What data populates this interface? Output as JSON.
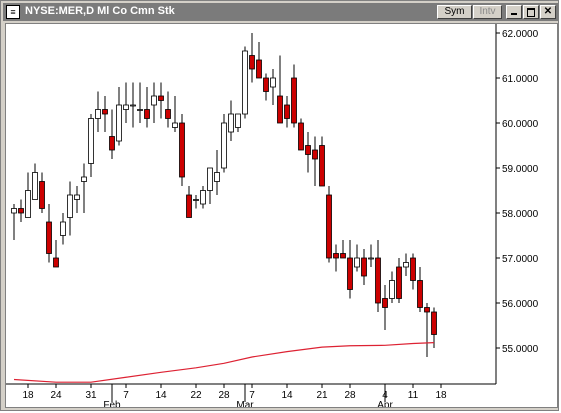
{
  "window": {
    "title": "NYSE:MER,D Ml Co Cmn Stk",
    "icon_label": "≡",
    "buttons": {
      "sym": "Sym",
      "intv": "Intv"
    }
  },
  "colors": {
    "down_fill": "#cc0000",
    "up_fill": "#ffffff",
    "ma_line": "#dd2233",
    "axis": "#000000",
    "titlebar": "#7b7b7b"
  },
  "chart_data": {
    "type": "candlestick",
    "title": "NYSE:MER,D Ml Co Cmn Stk",
    "ylim": [
      54.2,
      62.2
    ],
    "yticks": [
      "55.0000",
      "56.0000",
      "57.0000",
      "58.0000",
      "59.0000",
      "60.0000",
      "61.0000",
      "62.0000"
    ],
    "ytick_values": [
      55,
      56,
      57,
      58,
      59,
      60,
      61,
      62
    ],
    "xticks": [
      {
        "i": 2,
        "label": "18"
      },
      {
        "i": 6,
        "label": "24"
      },
      {
        "i": 11,
        "label": "31"
      },
      {
        "i": 16,
        "label": "7"
      },
      {
        "i": 21,
        "label": "14"
      },
      {
        "i": 26,
        "label": "22"
      },
      {
        "i": 30,
        "label": "28"
      },
      {
        "i": 34,
        "label": "7"
      },
      {
        "i": 39,
        "label": "14"
      },
      {
        "i": 44,
        "label": "21"
      },
      {
        "i": 48,
        "label": "28"
      },
      {
        "i": 53,
        "label": "4"
      },
      {
        "i": 57,
        "label": "11"
      },
      {
        "i": 61,
        "label": "18"
      }
    ],
    "month_labels": [
      {
        "i": 14,
        "label": "Feb"
      },
      {
        "i": 33,
        "label": "Mar"
      },
      {
        "i": 53,
        "label": "Apr"
      }
    ],
    "slot_count": 63,
    "series": [
      {
        "type": "ohlc",
        "values": [
          [
            58.0,
            58.2,
            57.4,
            58.1
          ],
          [
            58.1,
            58.3,
            57.8,
            58.0
          ],
          [
            57.9,
            58.9,
            57.9,
            58.5
          ],
          [
            58.3,
            59.1,
            58.3,
            58.9
          ],
          [
            58.7,
            58.9,
            58.0,
            58.1
          ],
          [
            57.8,
            58.2,
            56.9,
            57.1
          ],
          [
            57.0,
            57.4,
            56.8,
            56.8
          ],
          [
            57.5,
            58.0,
            57.3,
            57.8
          ],
          [
            57.9,
            58.7,
            57.5,
            58.4
          ],
          [
            58.3,
            58.6,
            58.0,
            58.4
          ],
          [
            58.7,
            59.1,
            58.0,
            58.8
          ],
          [
            59.1,
            60.2,
            58.8,
            60.1
          ],
          [
            60.1,
            60.7,
            59.8,
            60.3
          ],
          [
            60.3,
            60.6,
            59.8,
            60.2
          ],
          [
            59.7,
            60.3,
            59.2,
            59.4
          ],
          [
            59.6,
            60.8,
            59.5,
            60.4
          ],
          [
            60.3,
            60.9,
            60.0,
            60.4
          ],
          [
            60.4,
            60.9,
            59.9,
            60.4
          ],
          [
            60.3,
            60.9,
            60.0,
            60.3
          ],
          [
            60.3,
            60.8,
            59.9,
            60.1
          ],
          [
            60.4,
            60.9,
            60.0,
            60.6
          ],
          [
            60.6,
            60.9,
            60.1,
            60.5
          ],
          [
            60.3,
            60.7,
            59.9,
            60.1
          ],
          [
            59.9,
            60.6,
            59.8,
            60.0
          ],
          [
            60.0,
            60.2,
            58.6,
            58.8
          ],
          [
            58.4,
            58.6,
            57.9,
            57.9
          ],
          [
            58.3,
            58.4,
            58.1,
            58.3
          ],
          [
            58.2,
            58.6,
            58.1,
            58.5
          ],
          [
            58.5,
            59.0,
            58.2,
            59.0
          ],
          [
            58.7,
            59.4,
            58.4,
            58.9
          ],
          [
            59.0,
            60.2,
            58.9,
            60.0
          ],
          [
            59.8,
            60.5,
            59.6,
            60.2
          ],
          [
            59.9,
            60.2,
            59.8,
            60.2
          ],
          [
            60.2,
            61.7,
            60.1,
            61.6
          ],
          [
            61.5,
            62.0,
            60.9,
            61.2
          ],
          [
            61.4,
            61.8,
            61.0,
            61.0
          ],
          [
            61.0,
            61.1,
            60.5,
            60.7
          ],
          [
            60.8,
            61.2,
            60.4,
            61.0
          ],
          [
            60.6,
            61.5,
            60.0,
            60.0
          ],
          [
            60.4,
            60.6,
            59.9,
            60.1
          ],
          [
            61.0,
            61.3,
            59.9,
            60.0
          ],
          [
            60.0,
            60.1,
            59.4,
            59.4
          ],
          [
            59.5,
            59.8,
            58.9,
            59.3
          ],
          [
            59.4,
            59.7,
            58.6,
            59.2
          ],
          [
            59.5,
            59.7,
            58.6,
            58.6
          ],
          [
            58.4,
            58.6,
            56.9,
            57.0
          ],
          [
            57.1,
            57.3,
            56.7,
            57.0
          ],
          [
            57.1,
            57.4,
            57.0,
            57.0
          ],
          [
            57.0,
            57.4,
            56.1,
            56.3
          ],
          [
            56.8,
            57.3,
            56.7,
            57.0
          ],
          [
            57.0,
            57.2,
            56.4,
            56.6
          ],
          [
            57.0,
            57.3,
            56.8,
            57.0
          ],
          [
            57.0,
            57.4,
            55.8,
            56.0
          ],
          [
            56.1,
            56.4,
            55.4,
            55.9
          ],
          [
            56.1,
            56.7,
            56.0,
            56.5
          ],
          [
            56.8,
            57.0,
            56.0,
            56.1
          ],
          [
            56.8,
            57.1,
            56.6,
            56.9
          ],
          [
            57.0,
            57.1,
            56.3,
            56.5
          ],
          [
            56.5,
            56.8,
            55.8,
            55.9
          ],
          [
            55.9,
            56.0,
            54.8,
            55.8
          ],
          [
            55.8,
            55.9,
            55.0,
            55.3
          ]
        ]
      },
      {
        "type": "line",
        "name": "moving average",
        "values": [
          [
            0,
            54.3
          ],
          [
            6,
            54.24
          ],
          [
            11,
            54.24
          ],
          [
            16,
            54.35
          ],
          [
            21,
            54.46
          ],
          [
            26,
            54.56
          ],
          [
            30,
            54.66
          ],
          [
            34,
            54.8
          ],
          [
            39,
            54.92
          ],
          [
            44,
            55.02
          ],
          [
            48,
            55.05
          ],
          [
            53,
            55.06
          ],
          [
            57,
            55.1
          ],
          [
            60,
            55.12
          ]
        ]
      }
    ]
  }
}
